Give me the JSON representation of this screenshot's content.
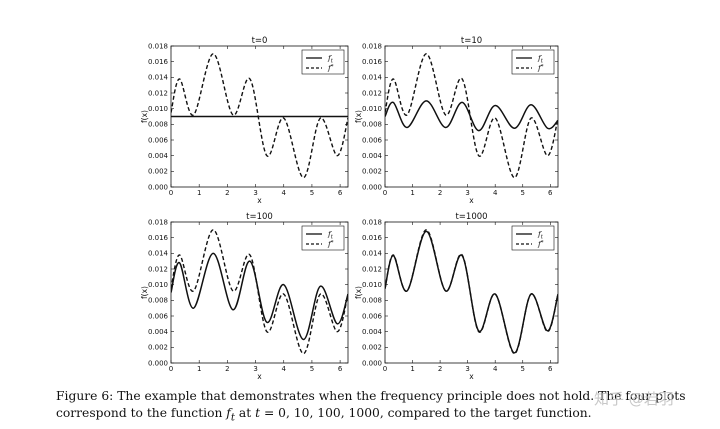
{
  "figure": {
    "caption_line1": "Figure 6: The example that demonstrates when the frequency principle does not hold. The four plots",
    "caption_line2a": "correspond to the function ",
    "caption_line2b": "f",
    "caption_line2c": "t",
    "caption_line2d": " at ",
    "caption_line2e": "t",
    "caption_line2f": " = 0,  10,  100,  1000, compared to the target function.",
    "watermark": "知乎 @若羽"
  },
  "colors": {
    "line": "#111111",
    "background": "#ffffff",
    "watermark": "#bdbdbd"
  },
  "chart_data": [
    {
      "type": "line",
      "title": "t=0",
      "xlabel": "x",
      "ylabel": "f(x)",
      "xlim": [
        0,
        6.28
      ],
      "ylim": [
        0,
        0.018
      ],
      "xticks": [
        "0",
        "1",
        "2",
        "3",
        "4",
        "5",
        "6"
      ],
      "yticks": [
        "0.000",
        "0.002",
        "0.004",
        "0.006",
        "0.008",
        "0.010",
        "0.012",
        "0.014",
        "0.016",
        "0.018"
      ],
      "legend": {
        "position": "top-right",
        "entries": [
          "f_t",
          "f*"
        ]
      },
      "series": [
        {
          "name": "f_t",
          "style": "solid",
          "x": [
            0,
            6.28
          ],
          "y": [
            0.009,
            0.009
          ]
        },
        {
          "name": "f*",
          "style": "dashed",
          "x": [
            0,
            0.3,
            0.8,
            1.5,
            2.2,
            2.8,
            3.4,
            4.0,
            4.7,
            5.3,
            5.9,
            6.28
          ],
          "y": [
            0.0095,
            0.0138,
            0.0092,
            0.017,
            0.0092,
            0.0138,
            0.004,
            0.0088,
            0.0012,
            0.0088,
            0.004,
            0.0088
          ]
        }
      ]
    },
    {
      "type": "line",
      "title": "t=10",
      "xlabel": "x",
      "ylabel": "f(x)",
      "xlim": [
        0,
        6.28
      ],
      "ylim": [
        0,
        0.018
      ],
      "xticks": [
        "0",
        "1",
        "2",
        "3",
        "4",
        "5",
        "6"
      ],
      "yticks": [
        "0.000",
        "0.002",
        "0.004",
        "0.006",
        "0.008",
        "0.010",
        "0.012",
        "0.014",
        "0.016",
        "0.018"
      ],
      "legend": {
        "position": "top-right",
        "entries": [
          "f_t",
          "f*"
        ]
      },
      "series": [
        {
          "name": "f_t",
          "style": "solid",
          "x": [
            0,
            0.3,
            0.8,
            1.5,
            2.2,
            2.8,
            3.4,
            4.0,
            4.7,
            5.3,
            5.9,
            6.28
          ],
          "y": [
            0.009,
            0.0108,
            0.0076,
            0.011,
            0.0076,
            0.0108,
            0.0072,
            0.0104,
            0.0075,
            0.0105,
            0.0075,
            0.0085
          ]
        },
        {
          "name": "f*",
          "style": "dashed",
          "x": [
            0,
            0.3,
            0.8,
            1.5,
            2.2,
            2.8,
            3.4,
            4.0,
            4.7,
            5.3,
            5.9,
            6.28
          ],
          "y": [
            0.0095,
            0.0138,
            0.0092,
            0.017,
            0.0092,
            0.0138,
            0.004,
            0.0088,
            0.0012,
            0.0088,
            0.004,
            0.0088
          ]
        }
      ]
    },
    {
      "type": "line",
      "title": "t=100",
      "xlabel": "x",
      "ylabel": "f(x)",
      "xlim": [
        0,
        6.28
      ],
      "ylim": [
        0,
        0.018
      ],
      "xticks": [
        "0",
        "1",
        "2",
        "3",
        "4",
        "5",
        "6"
      ],
      "yticks": [
        "0.000",
        "0.002",
        "0.004",
        "0.006",
        "0.008",
        "0.010",
        "0.012",
        "0.014",
        "0.016",
        "0.018"
      ],
      "legend": {
        "position": "top-right",
        "entries": [
          "f_t",
          "f*"
        ]
      },
      "series": [
        {
          "name": "f_t",
          "style": "solid",
          "x": [
            0,
            0.3,
            0.8,
            1.5,
            2.2,
            2.8,
            3.4,
            4.0,
            4.7,
            5.3,
            5.9,
            6.28
          ],
          "y": [
            0.009,
            0.0128,
            0.007,
            0.014,
            0.0068,
            0.013,
            0.0052,
            0.01,
            0.003,
            0.0098,
            0.005,
            0.0088
          ]
        },
        {
          "name": "f*",
          "style": "dashed",
          "x": [
            0,
            0.3,
            0.8,
            1.5,
            2.2,
            2.8,
            3.4,
            4.0,
            4.7,
            5.3,
            5.9,
            6.28
          ],
          "y": [
            0.0095,
            0.0138,
            0.0092,
            0.017,
            0.0092,
            0.0138,
            0.004,
            0.0088,
            0.0012,
            0.0088,
            0.004,
            0.0088
          ]
        }
      ]
    },
    {
      "type": "line",
      "title": "t=1000",
      "xlabel": "x",
      "ylabel": "f(x)",
      "xlim": [
        0,
        6.28
      ],
      "ylim": [
        0,
        0.018
      ],
      "xticks": [
        "0",
        "1",
        "2",
        "3",
        "4",
        "5",
        "6"
      ],
      "yticks": [
        "0.000",
        "0.002",
        "0.004",
        "0.006",
        "0.008",
        "0.010",
        "0.012",
        "0.014",
        "0.016",
        "0.018"
      ],
      "legend": {
        "position": "top-right",
        "entries": [
          "f_t",
          "f*"
        ]
      },
      "series": [
        {
          "name": "f_t",
          "style": "solid",
          "x": [
            0,
            0.3,
            0.8,
            1.5,
            2.2,
            2.8,
            3.4,
            4.0,
            4.7,
            5.3,
            5.9,
            6.28
          ],
          "y": [
            0.0095,
            0.0137,
            0.0092,
            0.0168,
            0.0092,
            0.0137,
            0.0041,
            0.0088,
            0.0013,
            0.0088,
            0.0041,
            0.0088
          ]
        },
        {
          "name": "f*",
          "style": "dashed",
          "x": [
            0,
            0.3,
            0.8,
            1.5,
            2.2,
            2.8,
            3.4,
            4.0,
            4.7,
            5.3,
            5.9,
            6.28
          ],
          "y": [
            0.0095,
            0.0138,
            0.0092,
            0.017,
            0.0092,
            0.0138,
            0.004,
            0.0088,
            0.0012,
            0.0088,
            0.004,
            0.0088
          ]
        }
      ]
    }
  ]
}
